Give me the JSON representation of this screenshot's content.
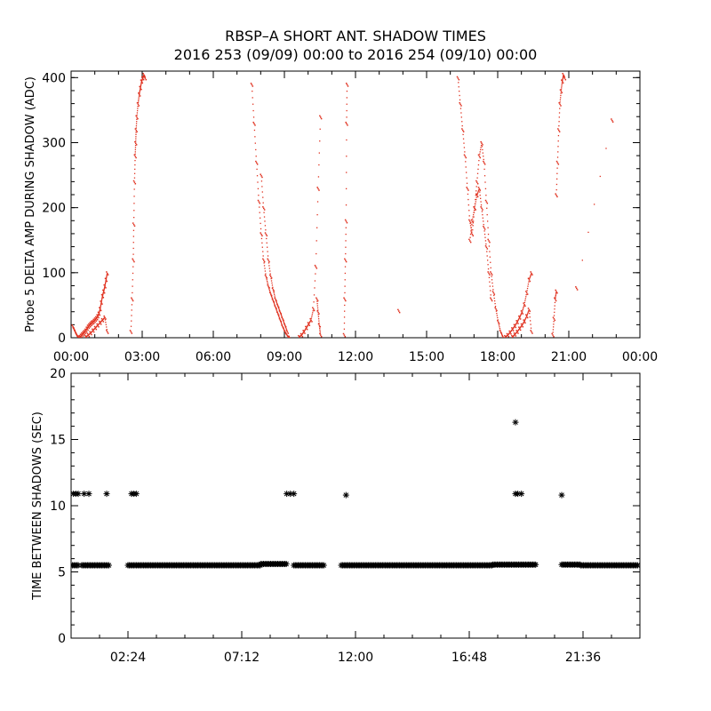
{
  "title": "RBSP–A SHORT ANT. SHADOW TIMES",
  "subtitle": "2016 253 (09/09) 00:00 to 2016 254 (09/10) 00:00",
  "chart_data": [
    {
      "type": "scatter",
      "ylabel": "Probe 5 DELTA AMP DURING SHADOW (ADC)",
      "xlabel": "",
      "xlim": [
        0,
        24
      ],
      "ylim": [
        0,
        410
      ],
      "x_tick_labels": [
        "00:00",
        "03:00",
        "06:00",
        "09:00",
        "12:00",
        "15:00",
        "18:00",
        "21:00",
        "00:00"
      ],
      "x_ticks": [
        0,
        3,
        6,
        9,
        12,
        15,
        18,
        21,
        24
      ],
      "y_ticks": [
        0,
        100,
        200,
        300,
        400
      ],
      "marker_color": "#e0301e",
      "series": [
        {
          "x": [
            0.05,
            0.1,
            0.15,
            0.2,
            0.25,
            0.3,
            0.35,
            0.4,
            0.45,
            0.5,
            0.55,
            0.6,
            0.65,
            0.7,
            0.75,
            0.8,
            0.85,
            0.9,
            0.95,
            1.0,
            1.05,
            1.1,
            1.15,
            1.2,
            1.25,
            1.3,
            1.35,
            1.4,
            1.45,
            1.5
          ],
          "y": [
            18,
            14,
            10,
            6,
            3,
            1,
            2,
            4,
            6,
            8,
            10,
            12,
            15,
            18,
            20,
            22,
            24,
            25,
            27,
            29,
            31,
            34,
            38,
            45,
            55,
            65,
            72,
            80,
            90,
            100
          ]
        },
        {
          "x": [
            0.6,
            0.7,
            0.8,
            0.9,
            1.0,
            1.1,
            1.2,
            1.3,
            1.4,
            1.5
          ],
          "y": [
            2,
            5,
            8,
            12,
            16,
            20,
            24,
            28,
            32,
            10
          ]
        },
        {
          "x": [
            2.5,
            2.55,
            2.6,
            2.62,
            2.65,
            2.68,
            2.7,
            2.72,
            2.75,
            2.8,
            2.85,
            2.9,
            2.95,
            3.0,
            3.05,
            3.1
          ],
          "y": [
            10,
            60,
            120,
            175,
            240,
            280,
            300,
            320,
            340,
            360,
            375,
            385,
            395,
            400,
            405,
            400
          ]
        },
        {
          "x": [
            7.6,
            7.7,
            7.8,
            7.9,
            8.0,
            8.1,
            8.2,
            8.3,
            8.4,
            8.5,
            8.6,
            8.7,
            8.8,
            8.9,
            9.0,
            9.1,
            9.2
          ],
          "y": [
            390,
            330,
            270,
            210,
            160,
            120,
            95,
            80,
            68,
            58,
            48,
            38,
            28,
            18,
            10,
            4,
            1
          ]
        },
        {
          "x": [
            8.0,
            8.1,
            8.2,
            8.3,
            8.4,
            8.5,
            8.6,
            8.7,
            8.8,
            8.9,
            9.0,
            9.1
          ],
          "y": [
            250,
            200,
            160,
            120,
            95,
            75,
            60,
            50,
            40,
            30,
            20,
            10
          ]
        },
        {
          "x": [
            9.6,
            9.7,
            9.8,
            9.9,
            10.0,
            10.1,
            10.2,
            10.3,
            10.4,
            10.5
          ],
          "y": [
            2,
            5,
            10,
            16,
            22,
            28,
            45,
            110,
            230,
            340
          ]
        },
        {
          "x": [
            10.35,
            10.4,
            10.45,
            10.5
          ],
          "y": [
            60,
            40,
            20,
            5
          ]
        },
        {
          "x": [
            11.5,
            11.52,
            11.55,
            11.58,
            11.6,
            11.62
          ],
          "y": [
            5,
            60,
            120,
            180,
            330,
            390
          ]
        },
        {
          "x": [
            13.8
          ],
          "y": [
            42
          ]
        },
        {
          "x": [
            16.3,
            16.4,
            16.5,
            16.6,
            16.7,
            16.8,
            16.9,
            17.0,
            17.1,
            17.2,
            17.3,
            17.4,
            17.5,
            17.6,
            17.7,
            17.8,
            17.9,
            18.0,
            18.1,
            18.2
          ],
          "y": [
            400,
            360,
            320,
            280,
            230,
            180,
            160,
            200,
            240,
            280,
            300,
            270,
            210,
            150,
            100,
            70,
            45,
            25,
            10,
            2
          ]
        },
        {
          "x": [
            16.8,
            16.9,
            17.0,
            17.1,
            17.2,
            17.3,
            17.4,
            17.5,
            17.6,
            17.7
          ],
          "y": [
            150,
            180,
            200,
            220,
            230,
            200,
            170,
            140,
            100,
            60
          ]
        },
        {
          "x": [
            18.3,
            18.4,
            18.5,
            18.6,
            18.7,
            18.8,
            18.9,
            19.0,
            19.1,
            19.2,
            19.3,
            19.4
          ],
          "y": [
            2,
            5,
            9,
            14,
            19,
            25,
            32,
            40,
            52,
            70,
            90,
            100
          ]
        },
        {
          "x": [
            18.6,
            18.7,
            18.8,
            18.9,
            19.0,
            19.1,
            19.2,
            19.3,
            19.4
          ],
          "y": [
            2,
            6,
            10,
            15,
            20,
            26,
            34,
            44,
            10
          ]
        },
        {
          "x": [
            20.3,
            20.35,
            20.4,
            20.45
          ],
          "y": [
            5,
            30,
            60,
            72
          ]
        },
        {
          "x": [
            20.45,
            20.5,
            20.55,
            20.6,
            20.65,
            20.7,
            20.75,
            20.8
          ],
          "y": [
            220,
            270,
            320,
            360,
            380,
            395,
            405,
            400
          ]
        },
        {
          "x": [
            21.3,
            22.8
          ],
          "y": [
            77,
            335
          ]
        }
      ]
    },
    {
      "type": "scatter",
      "ylabel": "TIME BETWEEN SHADOWS (SEC)",
      "xlabel": "",
      "xlim": [
        0,
        24
      ],
      "ylim": [
        0,
        20
      ],
      "x_tick_labels": [
        "02:24",
        "07:12",
        "12:00",
        "16:48",
        "21:36"
      ],
      "x_ticks": [
        2.4,
        7.2,
        12.0,
        16.8,
        21.6
      ],
      "y_ticks": [
        0,
        5,
        10,
        15,
        20
      ],
      "marker": "asterisk",
      "marker_color": "#000000",
      "series": [
        {
          "name": "",
          "x": [
            0.1,
            0.2,
            0.3,
            0.55,
            0.75,
            1.5,
            2.55,
            2.65,
            2.75,
            9.1,
            9.25,
            9.4,
            11.6,
            18.75,
            18.85,
            19.0,
            20.7
          ],
          "y": [
            10.9,
            10.9,
            10.9,
            10.9,
            10.9,
            10.9,
            10.9,
            10.9,
            10.9,
            10.9,
            10.9,
            10.9,
            10.8,
            10.9,
            10.9,
            10.9,
            10.8
          ]
        },
        {
          "x": [
            18.75
          ],
          "y": [
            16.3
          ]
        },
        {
          "x_ranges": [
            [
              0.0,
              0.35
            ],
            [
              0.45,
              1.6
            ],
            [
              2.4,
              8.0
            ],
            [
              8.0,
              9.1
            ],
            [
              9.4,
              10.7
            ],
            [
              11.4,
              17.8
            ],
            [
              17.8,
              19.6
            ],
            [
              20.7,
              21.5
            ],
            [
              21.5,
              23.9
            ]
          ],
          "y": [
            5.5,
            5.5,
            5.5,
            5.6,
            5.5,
            5.5,
            5.55,
            5.55,
            5.5
          ]
        }
      ]
    }
  ]
}
